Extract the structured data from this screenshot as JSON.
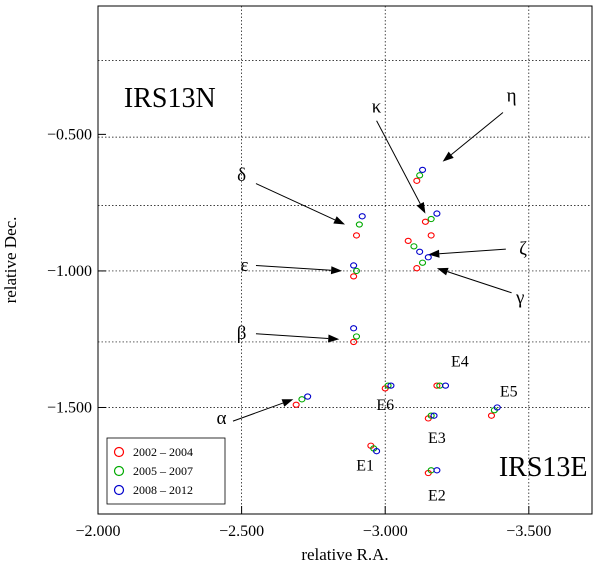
{
  "chart_data": {
    "type": "scatter",
    "title": "",
    "xlabel": "relative R.A.",
    "ylabel": "relative Dec.",
    "xlim": [
      -2.0,
      -3.72
    ],
    "ylim": [
      -1.89,
      -0.03
    ],
    "x_ticks": [
      -2.0,
      -2.5,
      -3.0,
      -3.5
    ],
    "x_tick_labels": [
      "−2.000",
      "−2.500",
      "−3.000",
      "−3.500"
    ],
    "x_grid": [
      -2.5,
      -3.0,
      -3.5
    ],
    "y_ticks": [
      -0.5,
      -1.0,
      -1.5
    ],
    "y_tick_labels": [
      "−0.500",
      "−1.000",
      "−1.500"
    ],
    "y_grid": [
      -0.23,
      -0.51,
      -0.76,
      -1.0,
      -1.26,
      -1.5
    ],
    "grid": true,
    "legend_position": "bottom-left",
    "series": [
      {
        "name": "2002 – 2004",
        "color": "#ff0000",
        "points": [
          [
            -2.69,
            -1.49
          ],
          [
            -2.9,
            -0.87
          ],
          [
            -2.89,
            -1.02
          ],
          [
            -2.89,
            -1.26
          ],
          [
            -3.11,
            -0.67
          ],
          [
            -3.14,
            -0.82
          ],
          [
            -3.08,
            -0.89
          ],
          [
            -3.11,
            -0.99
          ],
          [
            -3.0,
            -1.43
          ],
          [
            -2.95,
            -1.64
          ],
          [
            -3.15,
            -1.54
          ],
          [
            -3.18,
            -1.42
          ],
          [
            -3.15,
            -1.74
          ],
          [
            -3.37,
            -1.53
          ],
          [
            -3.16,
            -0.87
          ]
        ]
      },
      {
        "name": "2005 – 2007",
        "color": "#00aa00",
        "points": [
          [
            -2.71,
            -1.47
          ],
          [
            -2.91,
            -0.83
          ],
          [
            -2.9,
            -1.0
          ],
          [
            -2.9,
            -1.24
          ],
          [
            -3.12,
            -0.65
          ],
          [
            -3.16,
            -0.81
          ],
          [
            -3.1,
            -0.91
          ],
          [
            -3.13,
            -0.97
          ],
          [
            -3.01,
            -1.42
          ],
          [
            -2.96,
            -1.65
          ],
          [
            -3.16,
            -1.53
          ],
          [
            -3.19,
            -1.42
          ],
          [
            -3.16,
            -1.73
          ],
          [
            -3.38,
            -1.51
          ]
        ]
      },
      {
        "name": "2008 – 2012",
        "color": "#0000cc",
        "points": [
          [
            -2.73,
            -1.46
          ],
          [
            -2.92,
            -0.8
          ],
          [
            -2.89,
            -0.98
          ],
          [
            -2.89,
            -1.21
          ],
          [
            -3.13,
            -0.63
          ],
          [
            -3.18,
            -0.79
          ],
          [
            -3.12,
            -0.93
          ],
          [
            -3.15,
            -0.95
          ],
          [
            -3.02,
            -1.42
          ],
          [
            -2.97,
            -1.66
          ],
          [
            -3.17,
            -1.53
          ],
          [
            -3.21,
            -1.42
          ],
          [
            -3.18,
            -1.73
          ],
          [
            -3.39,
            -1.5
          ]
        ]
      }
    ],
    "labels": [
      {
        "text": "IRS13N",
        "x": -2.25,
        "y": -0.4,
        "size": "large"
      },
      {
        "text": "IRS13E",
        "x": -3.55,
        "y": -1.75,
        "size": "large"
      },
      {
        "text": "κ",
        "x": -2.97,
        "y": -0.42,
        "size": "medium"
      },
      {
        "text": "η",
        "x": -3.44,
        "y": -0.38,
        "size": "medium"
      },
      {
        "text": "δ",
        "x": -2.5,
        "y": -0.67,
        "size": "medium"
      },
      {
        "text": "ζ",
        "x": -3.48,
        "y": -0.94,
        "size": "medium"
      },
      {
        "text": "ε",
        "x": -2.51,
        "y": -1.0,
        "size": "medium"
      },
      {
        "text": "γ",
        "x": -3.47,
        "y": -1.12,
        "size": "medium"
      },
      {
        "text": "β",
        "x": -2.5,
        "y": -1.25,
        "size": "medium"
      },
      {
        "text": "α",
        "x": -2.43,
        "y": -1.56,
        "size": "medium"
      },
      {
        "text": "E4",
        "x": -3.26,
        "y": -1.35,
        "size": "small"
      },
      {
        "text": "E5",
        "x": -3.43,
        "y": -1.46,
        "size": "small"
      },
      {
        "text": "E6",
        "x": -3.0,
        "y": -1.51,
        "size": "small"
      },
      {
        "text": "E3",
        "x": -3.18,
        "y": -1.63,
        "size": "small"
      },
      {
        "text": "E1",
        "x": -2.93,
        "y": -1.73,
        "size": "small"
      },
      {
        "text": "E2",
        "x": -3.18,
        "y": -1.84,
        "size": "small"
      }
    ],
    "arrows": [
      {
        "from": [
          -2.97,
          -0.45
        ],
        "to": [
          -3.14,
          -0.79
        ]
      },
      {
        "from": [
          -3.41,
          -0.42
        ],
        "to": [
          -3.2,
          -0.6
        ]
      },
      {
        "from": [
          -2.55,
          -0.68
        ],
        "to": [
          -2.86,
          -0.83
        ]
      },
      {
        "from": [
          -3.42,
          -0.92
        ],
        "to": [
          -3.15,
          -0.94
        ]
      },
      {
        "from": [
          -2.55,
          -0.98
        ],
        "to": [
          -2.85,
          -1.0
        ]
      },
      {
        "from": [
          -3.44,
          -1.08
        ],
        "to": [
          -3.18,
          -0.99
        ]
      },
      {
        "from": [
          -2.55,
          -1.23
        ],
        "to": [
          -2.84,
          -1.25
        ]
      },
      {
        "from": [
          -2.47,
          -1.55
        ],
        "to": [
          -2.68,
          -1.47
        ]
      }
    ]
  }
}
